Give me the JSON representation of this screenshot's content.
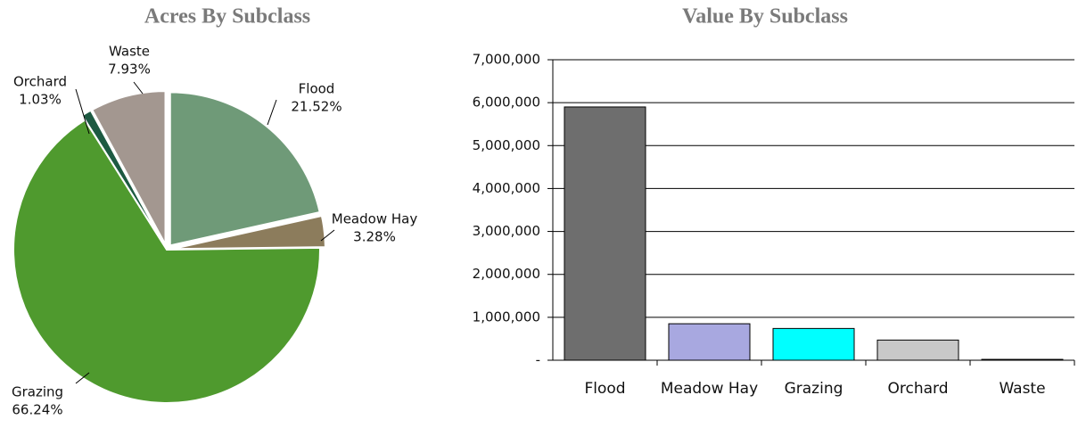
{
  "chart_data": [
    {
      "type": "pie",
      "title": "Acres By Subclass",
      "categories": [
        "Flood",
        "Meadow Hay",
        "Grazing",
        "Orchard",
        "Waste"
      ],
      "values": [
        21.52,
        3.28,
        66.24,
        1.03,
        7.93
      ],
      "value_labels": [
        "21.52%",
        "3.28%",
        "66.24%",
        "1.03%",
        "7.93%"
      ],
      "colors": [
        "#6f9a78",
        "#8c7c5c",
        "#4f9a2e",
        "#1d5a42",
        "#a39790"
      ]
    },
    {
      "type": "bar",
      "title": "Value By Subclass",
      "categories": [
        "Flood",
        "Meadow Hay",
        "Grazing",
        "Orchard",
        "Waste"
      ],
      "values": [
        5900000,
        850000,
        740000,
        470000,
        20000
      ],
      "colors": [
        "#6e6e6e",
        "#a8a8e0",
        "#00ffff",
        "#c8c8c8",
        "#222222"
      ],
      "ylim": [
        0,
        7000000
      ],
      "yticks": [
        {
          "value": 0,
          "label": "-"
        },
        {
          "value": 1000000,
          "label": "1,000,000"
        },
        {
          "value": 2000000,
          "label": "2,000,000"
        },
        {
          "value": 3000000,
          "label": "3,000,000"
        },
        {
          "value": 4000000,
          "label": "4,000,000"
        },
        {
          "value": 5000000,
          "label": "5,000,000"
        },
        {
          "value": 6000000,
          "label": "6,000,000"
        },
        {
          "value": 7000000,
          "label": "7,000,000"
        }
      ],
      "grid": true
    }
  ]
}
